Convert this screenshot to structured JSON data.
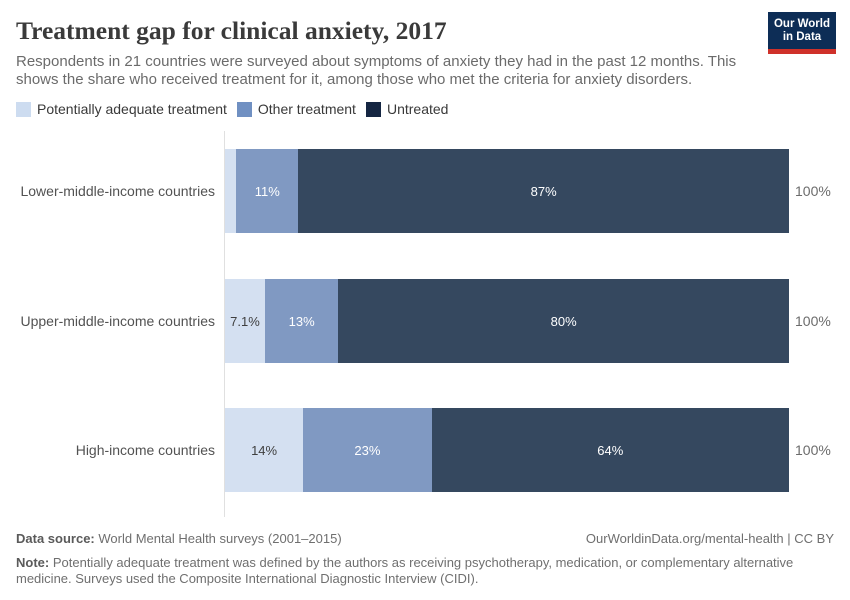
{
  "header": {
    "title": "Treatment gap for clinical anxiety, 2017",
    "subtitle_line1": "Respondents in 21 countries were surveyed about symptoms of anxiety they had in the past 12 months. This",
    "subtitle_line2": "shows the share who received treatment for it, among those who met the criteria for anxiety disorders.",
    "logo_line1": "Our World",
    "logo_line2": "in Data",
    "logo_bg_color": "#0d2d56",
    "logo_accent_color": "#cf312a"
  },
  "chart_data": {
    "type": "bar",
    "stacked": true,
    "orientation": "horizontal",
    "unit": "%",
    "categories": [
      "Lower-middle-income countries",
      "Upper-middle-income countries",
      "High-income countries"
    ],
    "series": [
      {
        "name": "Potentially adequate treatment",
        "color": "#cddcf0",
        "bar_color": "#d4e0f1",
        "values": [
          2,
          7.1,
          14
        ],
        "labels": [
          "",
          "7.1%",
          "14%"
        ]
      },
      {
        "name": "Other treatment",
        "color": "#7090c2",
        "bar_color": "#8099c2",
        "values": [
          11,
          13,
          23
        ],
        "labels": [
          "11%",
          "13%",
          "23%"
        ]
      },
      {
        "name": "Untreated",
        "color": "#152642",
        "bar_color": "#35485f",
        "values": [
          87,
          80,
          64
        ],
        "labels": [
          "87%",
          "80%",
          "64%"
        ]
      }
    ],
    "totals": [
      "100%",
      "100%",
      "100%"
    ],
    "xlim": [
      0,
      100
    ],
    "legend_position": "top"
  },
  "footer": {
    "source_label": "Data source:",
    "source_value": "World Mental Health surveys (2001–2015)",
    "attribution": "OurWorldinData.org/mental-health | CC BY",
    "note_label": "Note:",
    "note_line1": "Potentially adequate treatment was defined by the authors as receiving psychotherapy, medication, or complementary alternative",
    "note_line2": "medicine. Surveys used the Composite International Diagnostic Interview (CIDI)."
  }
}
